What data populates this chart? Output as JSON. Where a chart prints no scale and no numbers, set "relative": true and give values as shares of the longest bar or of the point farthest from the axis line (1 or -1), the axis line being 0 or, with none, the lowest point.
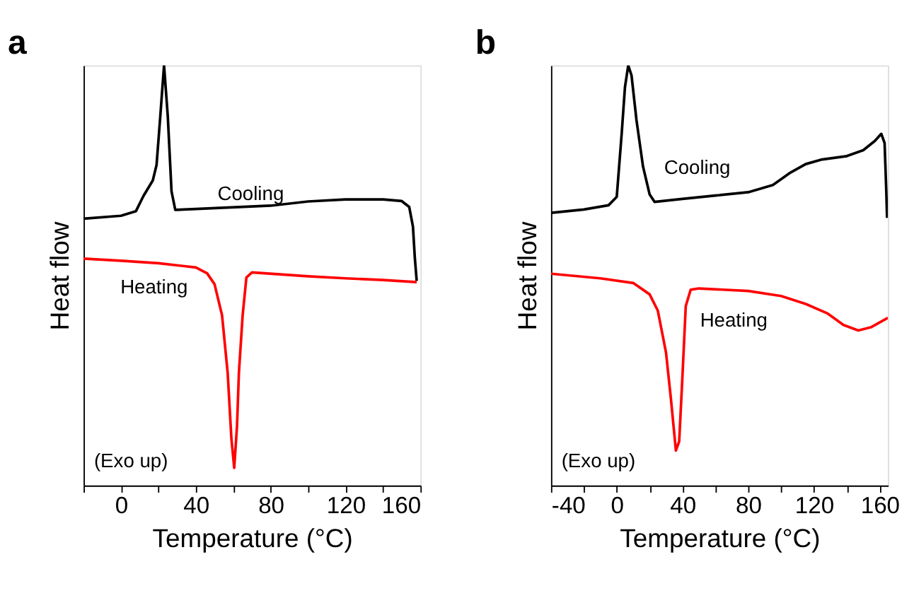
{
  "chart_data": [
    {
      "type": "line",
      "title": "a",
      "xlabel": "Temperature (°C)",
      "ylabel": "Heat flow",
      "relative": true,
      "xlim": [
        -20,
        160
      ],
      "xticks": [
        {
          "value": -20,
          "label": null
        },
        0,
        {
          "value": 20,
          "label": null
        },
        40,
        {
          "value": 60,
          "label": null
        },
        80,
        {
          "value": 100,
          "label": null
        },
        120,
        {
          "value": 140,
          "label": null
        },
        160
      ],
      "grid": false,
      "marker": "none",
      "line_style": "solid",
      "series": [
        {
          "color": "#000000",
          "x": [
            -20,
            0,
            8,
            12,
            17,
            19,
            21,
            23,
            25,
            27,
            29,
            40,
            80,
            100,
            120,
            140,
            150,
            154,
            156,
            157,
            158
          ],
          "values": [
            0.635,
            0.642,
            0.653,
            0.689,
            0.726,
            0.763,
            0.879,
            1.0,
            0.879,
            0.7,
            0.656,
            0.658,
            0.666,
            0.676,
            0.681,
            0.681,
            0.677,
            0.663,
            0.616,
            0.542,
            0.487
          ]
        },
        {
          "color": "#ff0000",
          "x": [
            -20,
            0,
            20,
            40,
            46,
            50,
            54,
            57,
            59,
            60.5,
            62,
            63,
            65,
            67,
            70,
            100,
            120,
            140,
            158
          ],
          "values": [
            0.54,
            0.535,
            0.529,
            0.519,
            0.505,
            0.479,
            0.405,
            0.268,
            0.111,
            0.042,
            0.142,
            0.268,
            0.405,
            0.495,
            0.507,
            0.498,
            0.493,
            0.489,
            0.484
          ]
        }
      ],
      "annotations": [
        "Cooling",
        "Heating",
        "(Exo up)"
      ]
    },
    {
      "type": "line",
      "title": "b",
      "xlabel": "Temperature (°C)",
      "ylabel": "Heat flow",
      "relative": true,
      "xlim": [
        -40,
        165
      ],
      "xticks": [
        -40,
        {
          "value": -20,
          "label": null
        },
        0,
        {
          "value": 20,
          "label": null
        },
        40,
        {
          "value": 60,
          "label": null
        },
        80,
        {
          "value": 100,
          "label": null
        },
        120,
        {
          "value": 140,
          "label": null
        },
        160
      ],
      "grid": false,
      "marker": "none",
      "line_style": "solid",
      "series": [
        {
          "color": "#000000",
          "x": [
            -40,
            -20,
            -5,
            0,
            3,
            5,
            7,
            9,
            12,
            16,
            20,
            23,
            40,
            60,
            80,
            95,
            105,
            115,
            125,
            140,
            150,
            157,
            161,
            163,
            164,
            164.5
          ],
          "values": [
            0.649,
            0.657,
            0.667,
            0.687,
            0.837,
            0.948,
            1.0,
            0.976,
            0.87,
            0.759,
            0.693,
            0.675,
            0.682,
            0.69,
            0.698,
            0.715,
            0.743,
            0.765,
            0.776,
            0.784,
            0.798,
            0.82,
            0.837,
            0.815,
            0.704,
            0.637
          ]
        },
        {
          "color": "#ff0000",
          "x": [
            -40,
            -10,
            10,
            20,
            25,
            30,
            33,
            36,
            38,
            40,
            42,
            45,
            50,
            80,
            100,
            115,
            128,
            138,
            147,
            155,
            165
          ],
          "values": [
            0.504,
            0.493,
            0.482,
            0.455,
            0.416,
            0.316,
            0.205,
            0.083,
            0.105,
            0.261,
            0.427,
            0.466,
            0.469,
            0.463,
            0.451,
            0.432,
            0.41,
            0.382,
            0.369,
            0.377,
            0.399
          ]
        }
      ],
      "annotations": [
        "Cooling",
        "Heating",
        "(Exo up)"
      ]
    }
  ]
}
